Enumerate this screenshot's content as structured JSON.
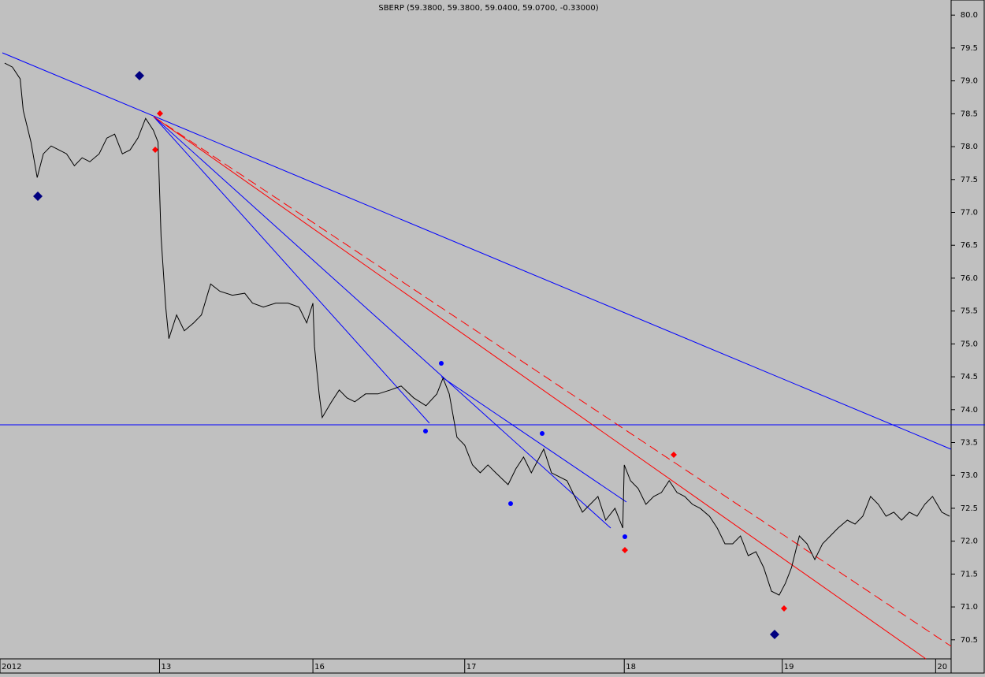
{
  "chart_data": {
    "type": "line",
    "title": "SBERP (59.3800, 59.3800, 59.0400, 59.0700, -0.33000)",
    "series": [
      {
        "color": "#000000",
        "x": [
          0.03,
          0.08,
          0.13,
          0.15,
          0.2,
          0.24,
          0.28,
          0.33,
          0.38,
          0.43,
          0.48,
          0.53,
          0.58,
          0.64,
          0.69,
          0.74,
          0.79,
          0.84,
          0.89,
          0.94,
          0.99,
          1.02,
          1.04,
          1.07,
          1.09,
          1.14,
          1.19,
          1.25,
          1.3,
          1.36,
          1.42,
          1.5,
          1.58,
          1.63,
          1.7,
          1.78,
          1.86,
          1.93,
          1.98,
          2.02,
          2.03,
          2.06,
          2.08,
          2.14,
          2.19,
          2.24,
          2.29,
          2.36,
          2.44,
          2.52,
          2.59,
          2.67,
          2.75,
          2.82,
          2.86,
          2.9,
          2.95,
          3.0,
          3.05,
          3.1,
          3.15,
          3.2,
          3.28,
          3.33,
          3.38,
          3.43,
          3.51,
          3.56,
          3.61,
          3.66,
          3.71,
          3.76,
          3.81,
          3.86,
          3.91,
          3.97,
          4.02,
          4.03,
          4.07,
          4.12,
          4.17,
          4.22,
          4.27,
          4.32,
          4.37,
          4.42,
          4.47,
          4.52,
          4.58,
          4.63,
          4.68,
          4.73,
          4.78,
          4.83,
          4.88,
          4.93,
          4.98,
          5.03,
          5.07,
          5.11,
          5.16,
          5.21,
          5.26,
          5.31,
          5.36,
          5.41,
          5.47,
          5.52,
          5.57,
          5.62,
          5.67,
          5.72,
          5.77,
          5.82,
          5.87,
          5.92,
          5.97,
          6.02,
          6.08,
          6.13
        ],
        "values": [
          79.27,
          79.21,
          79.03,
          78.55,
          78.07,
          77.53,
          77.89,
          78.01,
          77.95,
          77.89,
          77.71,
          77.83,
          77.77,
          77.89,
          78.13,
          78.19,
          77.89,
          77.95,
          78.13,
          78.43,
          78.25,
          78.07,
          76.63,
          75.56,
          75.08,
          75.44,
          75.2,
          75.32,
          75.44,
          75.91,
          75.8,
          75.74,
          75.77,
          75.62,
          75.56,
          75.62,
          75.62,
          75.56,
          75.32,
          75.62,
          74.96,
          74.24,
          73.88,
          74.12,
          74.3,
          74.18,
          74.12,
          74.24,
          74.24,
          74.3,
          74.36,
          74.18,
          74.06,
          74.24,
          74.48,
          74.24,
          73.58,
          73.46,
          73.16,
          73.04,
          73.16,
          73.04,
          72.86,
          73.1,
          73.28,
          73.04,
          73.4,
          73.04,
          72.98,
          72.92,
          72.68,
          72.44,
          72.56,
          72.68,
          72.32,
          72.5,
          72.2,
          73.16,
          72.92,
          72.8,
          72.56,
          72.68,
          72.74,
          72.92,
          72.74,
          72.68,
          72.56,
          72.5,
          72.38,
          72.2,
          71.96,
          71.96,
          72.08,
          71.78,
          71.84,
          71.6,
          71.24,
          71.18,
          71.36,
          71.6,
          72.08,
          71.96,
          71.72,
          71.96,
          72.08,
          72.2,
          72.32,
          72.26,
          72.38,
          72.68,
          72.56,
          72.38,
          72.44,
          72.32,
          72.44,
          72.38,
          72.56,
          72.68,
          72.44,
          72.38
        ]
      }
    ],
    "xlim": [
      0,
      6.14
    ],
    "ylim": [
      70.21,
      80.23
    ],
    "xticks": [
      {
        "value": 0,
        "label": "2012"
      },
      {
        "value": 1.03,
        "label": "13"
      },
      {
        "value": 2.02,
        "label": "16"
      },
      {
        "value": 3.0,
        "label": "17"
      },
      {
        "value": 4.03,
        "label": "18"
      },
      {
        "value": 5.05,
        "label": "19"
      },
      {
        "value": 6.04,
        "label": "20"
      }
    ],
    "yticks": [
      {
        "value": 70.5,
        "label": "70.5"
      },
      {
        "value": 71,
        "label": "71.0"
      },
      {
        "value": 71.5,
        "label": "71.5"
      },
      {
        "value": 72,
        "label": "72.0"
      },
      {
        "value": 72.5,
        "label": "72.5"
      },
      {
        "value": 73,
        "label": "73.0"
      },
      {
        "value": 73.5,
        "label": "73.5"
      },
      {
        "value": 74,
        "label": "74.0"
      },
      {
        "value": 74.5,
        "label": "74.5"
      },
      {
        "value": 75,
        "label": "75.0"
      },
      {
        "value": 75.5,
        "label": "75.5"
      },
      {
        "value": 76,
        "label": "76.0"
      },
      {
        "value": 76.5,
        "label": "76.5"
      },
      {
        "value": 77,
        "label": "77.0"
      },
      {
        "value": 77.5,
        "label": "77.5"
      },
      {
        "value": 78,
        "label": "78.0"
      },
      {
        "value": 78.5,
        "label": "78.5"
      },
      {
        "value": 79,
        "label": "79.0"
      },
      {
        "value": 79.5,
        "label": "79.5"
      },
      {
        "value": 80,
        "label": "80.0"
      }
    ]
  }
}
